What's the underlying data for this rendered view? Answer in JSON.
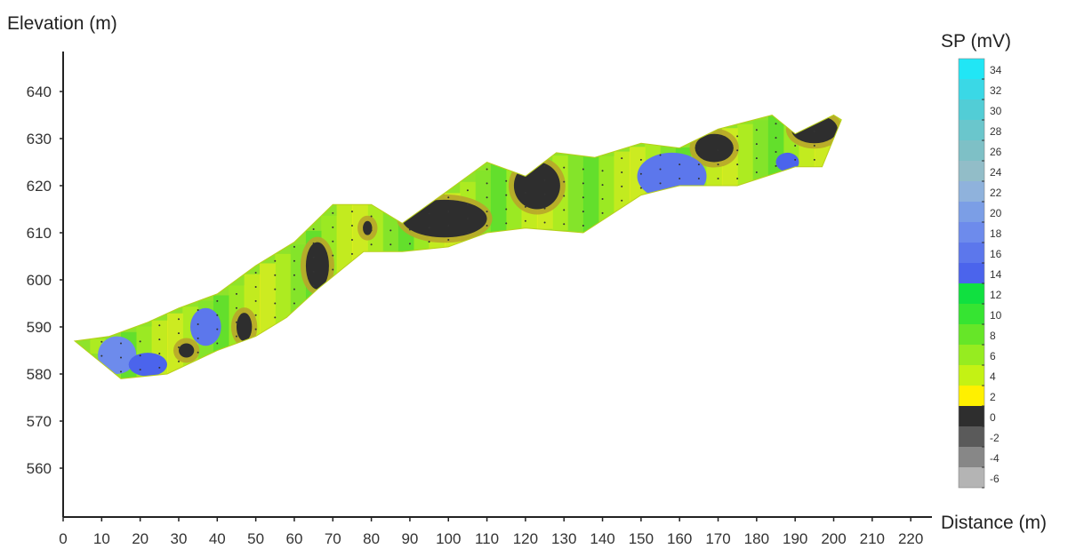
{
  "chart_data": {
    "type": "heatmap",
    "title": "",
    "xlabel": "Distance (m)",
    "ylabel": "Elevation (m)",
    "xlim": [
      0,
      225
    ],
    "ylim": [
      550,
      650
    ],
    "x_ticks": [
      "0",
      "10",
      "20",
      "30",
      "40",
      "50",
      "60",
      "70",
      "80",
      "90",
      "100",
      "110",
      "120",
      "130",
      "140",
      "150",
      "160",
      "170",
      "180",
      "190",
      "200",
      "210",
      "220"
    ],
    "y_ticks": [
      "560",
      "570",
      "580",
      "590",
      "600",
      "610",
      "620",
      "630",
      "640"
    ],
    "colorbar": {
      "title": "SP (mV)",
      "labels": [
        "34",
        "32",
        "30",
        "28",
        "26",
        "24",
        "22",
        "20",
        "18",
        "16",
        "14",
        "12",
        "10",
        "8",
        "6",
        "4",
        "2",
        "0",
        "-2",
        "-4",
        "-6"
      ],
      "colors": [
        "#21e6f5",
        "#3ad8e6",
        "#52cdd6",
        "#6ac6cc",
        "#7ec0c6",
        "#92bdc8",
        "#8fb2dc",
        "#7b9ee6",
        "#6d8bec",
        "#5c77ec",
        "#4b64ec",
        "#10e040",
        "#36e432",
        "#66e628",
        "#96ec20",
        "#c4f214",
        "#fff000",
        "#2e2e2e",
        "#5a5a5a",
        "#878787",
        "#b4b4b4"
      ]
    },
    "profile_top": [
      [
        3,
        587
      ],
      [
        12,
        588
      ],
      [
        22,
        591
      ],
      [
        30,
        594
      ],
      [
        40,
        597
      ],
      [
        50,
        603
      ],
      [
        60,
        608
      ],
      [
        70,
        616
      ],
      [
        80,
        616
      ],
      [
        88,
        612
      ],
      [
        100,
        619
      ],
      [
        110,
        625
      ],
      [
        120,
        622
      ],
      [
        128,
        627
      ],
      [
        138,
        626
      ],
      [
        150,
        629
      ],
      [
        160,
        628
      ],
      [
        170,
        632
      ],
      [
        184,
        635
      ],
      [
        190,
        631
      ],
      [
        200,
        635
      ],
      [
        202,
        634
      ]
    ],
    "profile_bottom": [
      [
        3,
        587
      ],
      [
        15,
        579
      ],
      [
        27,
        580
      ],
      [
        40,
        585
      ],
      [
        50,
        588
      ],
      [
        58,
        592
      ],
      [
        66,
        598
      ],
      [
        72,
        602
      ],
      [
        78,
        606
      ],
      [
        88,
        606
      ],
      [
        100,
        607
      ],
      [
        110,
        610
      ],
      [
        120,
        611
      ],
      [
        135,
        610
      ],
      [
        150,
        618
      ],
      [
        160,
        620
      ],
      [
        175,
        620
      ],
      [
        190,
        624
      ],
      [
        197,
        624
      ],
      [
        202,
        634
      ]
    ],
    "anomalies": [
      {
        "label": "0",
        "cx": 99,
        "cy": 613,
        "rx": 11,
        "ry": 4
      },
      {
        "label": "0",
        "cx": 123,
        "cy": 620,
        "rx": 6,
        "ry": 5
      },
      {
        "label": "0",
        "cx": 169,
        "cy": 628,
        "rx": 5,
        "ry": 3
      },
      {
        "label": "0",
        "cx": 195,
        "cy": 632,
        "rx": 6,
        "ry": 3
      },
      {
        "label": "0",
        "cx": 66,
        "cy": 603,
        "rx": 3,
        "ry": 5
      },
      {
        "label": "0",
        "cx": 47,
        "cy": 590,
        "rx": 2,
        "ry": 3
      },
      {
        "label": "0",
        "cx": 32,
        "cy": 585,
        "rx": 2,
        "ry": 1.5
      },
      {
        "label": "0",
        "cx": 79,
        "cy": 611,
        "rx": 1.2,
        "ry": 1.5
      },
      {
        "label": "16",
        "cx": 158,
        "cy": 622,
        "rx": 9,
        "ry": 5
      },
      {
        "label": "16",
        "cx": 37,
        "cy": 590,
        "rx": 4,
        "ry": 4
      },
      {
        "label": "18",
        "cx": 14,
        "cy": 584,
        "rx": 5,
        "ry": 4
      },
      {
        "label": "14",
        "cx": 22,
        "cy": 582,
        "rx": 5,
        "ry": 2.5
      },
      {
        "label": "14",
        "cx": 188,
        "cy": 625,
        "rx": 3,
        "ry": 2
      }
    ]
  }
}
